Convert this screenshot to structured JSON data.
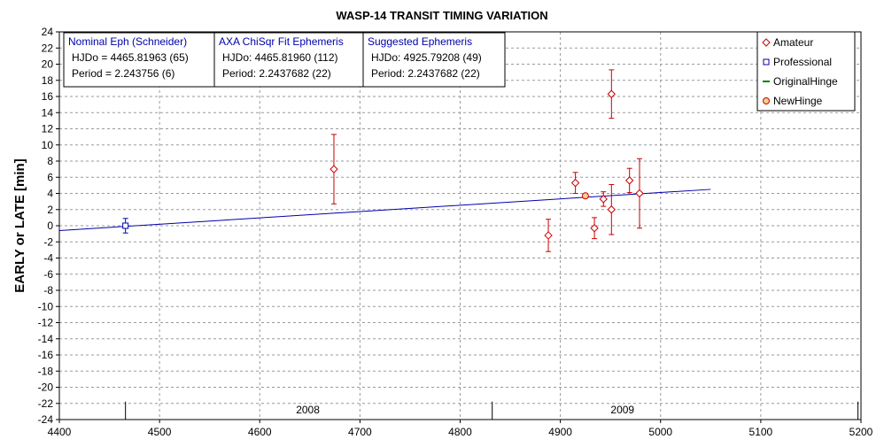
{
  "chart_data": {
    "type": "scatter",
    "title": "WASP-14 TRANSIT TIMING VARIATION",
    "xlabel": "",
    "ylabel": "EARLY or LATE [min]",
    "xlim": [
      4400,
      5200
    ],
    "ylim": [
      -24,
      24
    ],
    "x_ticks": [
      "4400",
      "4500",
      "4600",
      "4700",
      "4800",
      "4900",
      "5000",
      "5100",
      "5200"
    ],
    "y_ticks": [
      "24",
      "22",
      "20",
      "18",
      "16",
      "14",
      "12",
      "10",
      "8",
      "6",
      "4",
      "2",
      "0",
      "-2",
      "-4",
      "-6",
      "-8",
      "-10",
      "-12",
      "-14",
      "-16",
      "-18",
      "-20",
      "-22",
      "-24"
    ],
    "grid": true,
    "year_labels": [
      {
        "label": "2008",
        "x": 4648
      },
      {
        "label": "2009",
        "x": 4962
      }
    ],
    "year_dividers": [
      4466,
      4832,
      5197
    ],
    "ephemeris_boxes": [
      {
        "title": "Nominal Eph (Schneider)",
        "line1": "HJDo = 4465.81963 (65)",
        "line2": "Period = 2.243756 (6)"
      },
      {
        "title": "AXA ChiSqr Fit Ephemeris",
        "line1": "HJDo:  4465.81960 (112)",
        "line2": "Period: 2.2437682 (22)"
      },
      {
        "title": "Suggested Ephemeris",
        "line1": "HJDo:  4925.79208 (49)",
        "line2": "Period: 2.2437682 (22)"
      }
    ],
    "legend": [
      {
        "name": "Amateur",
        "marker": "diamond",
        "color": "#cc0000"
      },
      {
        "name": "Professional",
        "marker": "square",
        "color": "#0000aa"
      },
      {
        "name": "OriginalHinge",
        "marker": "line",
        "color": "#008000"
      },
      {
        "name": "NewHinge",
        "marker": "circle",
        "color": "#cc0000"
      }
    ],
    "legend_position": "top-right",
    "series": [
      {
        "name": "Amateur",
        "color": "#cc0000",
        "points": [
          {
            "x": 4674,
            "y": 7.0,
            "err": 4.3
          },
          {
            "x": 4888,
            "y": -1.2,
            "err": 2.0
          },
          {
            "x": 4915,
            "y": 5.3,
            "err": 1.3
          },
          {
            "x": 4934,
            "y": -0.3,
            "err": 1.3
          },
          {
            "x": 4943,
            "y": 3.3,
            "err": 0.9
          },
          {
            "x": 4951,
            "y": 16.3,
            "err": 3.0
          },
          {
            "x": 4951,
            "y": 2.0,
            "err": 3.1
          },
          {
            "x": 4969,
            "y": 5.6,
            "err": 1.5
          },
          {
            "x": 4979,
            "y": 4.0,
            "err": 4.3
          }
        ]
      },
      {
        "name": "Professional",
        "color": "#0000aa",
        "points": [
          {
            "x": 4466,
            "y": 0.0,
            "err": 0.9
          }
        ]
      },
      {
        "name": "NewHinge",
        "color": "#cc0000",
        "points": [
          {
            "x": 4925,
            "y": 3.7,
            "err": 0
          }
        ]
      }
    ],
    "fit_line": {
      "color": "#0000aa",
      "x": [
        4400,
        5050
      ],
      "y": [
        -0.6,
        4.5
      ]
    },
    "colors": {
      "grid": "#9a9a9a",
      "axis": "#000000",
      "fit": "#0000aa",
      "amateur": "#cc0000",
      "professional": "#0000aa"
    }
  }
}
